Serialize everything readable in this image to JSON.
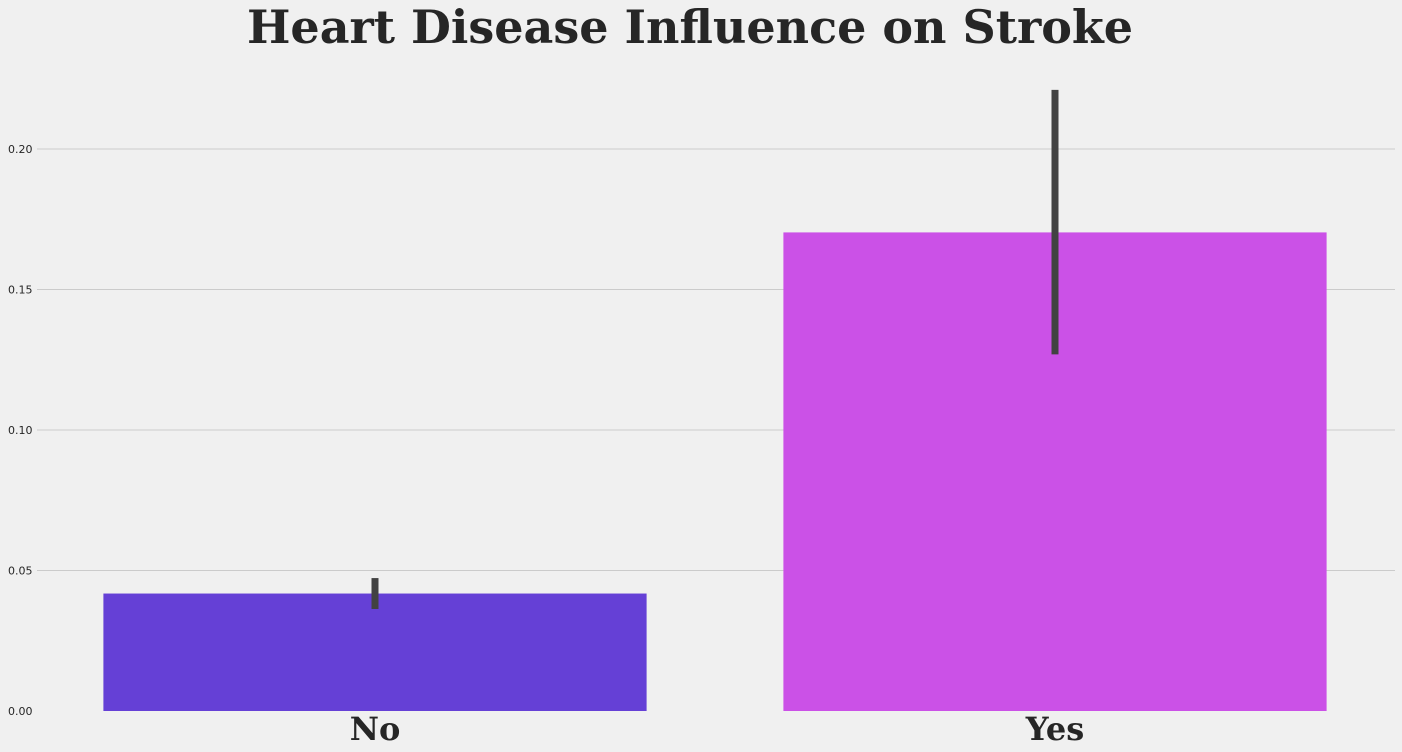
{
  "chart_data": {
    "type": "bar",
    "title": "Heart Disease Influence on Stroke",
    "xlabel": "",
    "ylabel": "",
    "categories": [
      "No",
      "Yes"
    ],
    "values": [
      0.0418,
      0.1703
    ],
    "error_bars": [
      {
        "low": 0.0363,
        "high": 0.0473
      },
      {
        "low": 0.1269,
        "high": 0.221
      }
    ],
    "colors": [
      "#6540d6",
      "#cb51e7"
    ],
    "errorbar_color": "#424242",
    "ylim": [
      0,
      0.2224
    ],
    "yticks": [
      0.0,
      0.05,
      0.1,
      0.15,
      0.2
    ],
    "ytick_labels": [
      "0.00",
      "0.05",
      "0.10",
      "0.15",
      "0.20"
    ],
    "grid": true,
    "background": "#f0f0f0",
    "grid_color": "#cbcbcb"
  }
}
